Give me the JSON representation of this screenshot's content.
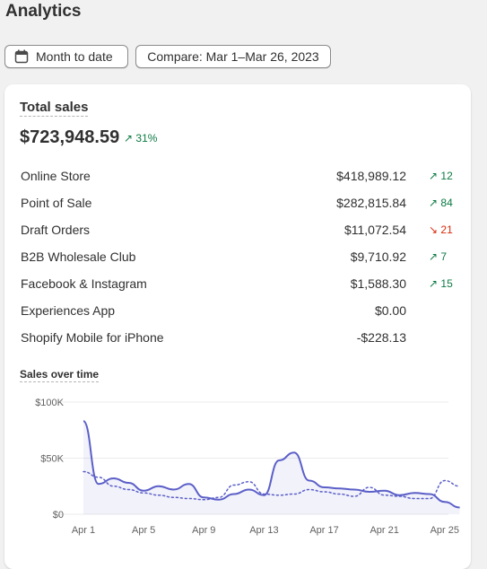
{
  "page": {
    "title": "Analytics"
  },
  "toolbar": {
    "date_range_label": "Month to date",
    "compare_label": "Compare: Mar 1–Mar 26, 2023",
    "calendar_icon": "calendar-icon"
  },
  "total_sales": {
    "label": "Total sales",
    "value": "$723,948.59",
    "change": "31%",
    "change_direction": "up"
  },
  "channels": [
    {
      "name": "Online Store",
      "value": "$418,989.12",
      "change": "12",
      "direction": "up"
    },
    {
      "name": "Point of Sale",
      "value": "$282,815.84",
      "change": "84",
      "direction": "up"
    },
    {
      "name": "Draft Orders",
      "value": "$11,072.54",
      "change": "21",
      "direction": "down"
    },
    {
      "name": "B2B Wholesale Club",
      "value": "$9,710.92",
      "change": "7",
      "direction": "up"
    },
    {
      "name": "Facebook & Instagram",
      "value": "$1,588.30",
      "change": "15",
      "direction": "up"
    },
    {
      "name": "Experiences App",
      "value": "$0.00",
      "change": "",
      "direction": ""
    },
    {
      "name": "Shopify Mobile for iPhone",
      "value": "-$228.13",
      "change": "",
      "direction": ""
    }
  ],
  "colors": {
    "up": "#0c7a43",
    "down": "#d72c0d",
    "current_series": "#5b5fc7",
    "compare_series": "#5b5fc7"
  },
  "chart_data": {
    "type": "line",
    "title": "Sales over time",
    "y_ticks": [
      "$100K",
      "$50K",
      "$0"
    ],
    "ylim": [
      0,
      100000
    ],
    "x_ticks": [
      "Apr 1",
      "Apr 5",
      "Apr 9",
      "Apr 13",
      "Apr 17",
      "Apr 21",
      "Apr 25"
    ],
    "x": [
      1,
      2,
      3,
      4,
      5,
      6,
      7,
      8,
      9,
      10,
      11,
      12,
      13,
      14,
      15,
      16,
      17,
      18,
      19,
      20,
      21,
      22,
      23,
      24,
      25,
      26
    ],
    "grid": true,
    "series": [
      {
        "values": [
          83000,
          27000,
          32000,
          28000,
          21000,
          25000,
          22000,
          27000,
          15000,
          13000,
          18000,
          22000,
          17000,
          48000,
          55000,
          30000,
          24000,
          23000,
          22000,
          20000,
          21000,
          17000,
          19000,
          18000,
          11000,
          6000
        ]
      },
      {
        "values": [
          38000,
          33000,
          25000,
          22000,
          19000,
          17000,
          15000,
          14000,
          13000,
          15000,
          26000,
          29000,
          18000,
          17000,
          18000,
          22000,
          20000,
          18000,
          16000,
          24000,
          17000,
          16000,
          14000,
          14000,
          30000,
          25000
        ],
        "style": "dotted"
      }
    ]
  }
}
